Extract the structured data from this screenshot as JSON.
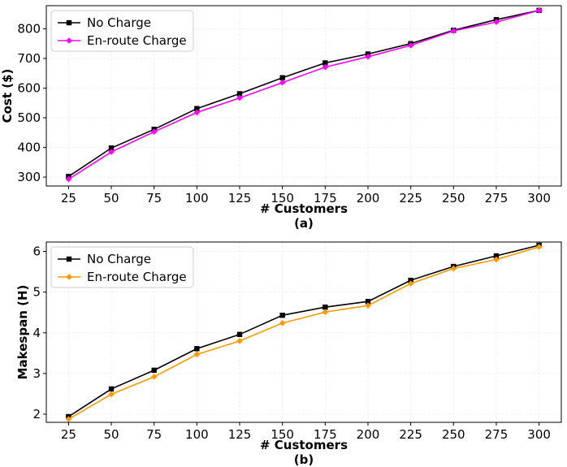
{
  "chart_data": [
    {
      "type": "line",
      "panel_label": "(a)",
      "xlabel": "# Customers",
      "ylabel": "Cost ($)",
      "x": [
        25,
        50,
        75,
        100,
        125,
        150,
        175,
        200,
        225,
        250,
        275,
        300
      ],
      "x_ticks": [
        "25",
        "50",
        "75",
        "100",
        "125",
        "150",
        "175",
        "200",
        "225",
        "250",
        "275",
        "300"
      ],
      "xlim": [
        12,
        313
      ],
      "ylim": [
        270,
        878
      ],
      "y_ticks": [
        300,
        400,
        500,
        600,
        700,
        800
      ],
      "grid": true,
      "legend_position": "top-left",
      "series": [
        {
          "name": "No Charge",
          "color": "#000000",
          "marker": "square",
          "values": [
            302,
            398,
            461,
            531,
            581,
            635,
            685,
            715,
            750,
            795,
            831,
            862
          ]
        },
        {
          "name": "En-route Charge",
          "color": "#ff00ff",
          "marker": "plus",
          "values": [
            293,
            385,
            453,
            518,
            567,
            619,
            671,
            706,
            744,
            793,
            823,
            862
          ]
        }
      ]
    },
    {
      "type": "line",
      "panel_label": "(b)",
      "xlabel": "# Customers",
      "ylabel": "Makespan (H)",
      "x": [
        25,
        50,
        75,
        100,
        125,
        150,
        175,
        200,
        225,
        250,
        275,
        300
      ],
      "x_ticks": [
        "25",
        "50",
        "75",
        "100",
        "125",
        "150",
        "175",
        "200",
        "225",
        "250",
        "275",
        "300"
      ],
      "xlim": [
        12,
        313
      ],
      "ylim": [
        1.8,
        6.23
      ],
      "y_ticks": [
        2,
        3,
        4,
        5,
        6
      ],
      "grid": true,
      "legend_position": "top-left",
      "series": [
        {
          "name": "No Charge",
          "color": "#000000",
          "marker": "square",
          "values": [
            1.94,
            2.62,
            3.08,
            3.61,
            3.96,
            4.43,
            4.63,
            4.77,
            5.29,
            5.63,
            5.89,
            6.15
          ]
        },
        {
          "name": "En-route Charge",
          "color": "#ff9900",
          "marker": "plus",
          "values": [
            1.88,
            2.49,
            2.92,
            3.47,
            3.8,
            4.24,
            4.51,
            4.67,
            5.21,
            5.58,
            5.8,
            6.11
          ]
        }
      ]
    }
  ]
}
